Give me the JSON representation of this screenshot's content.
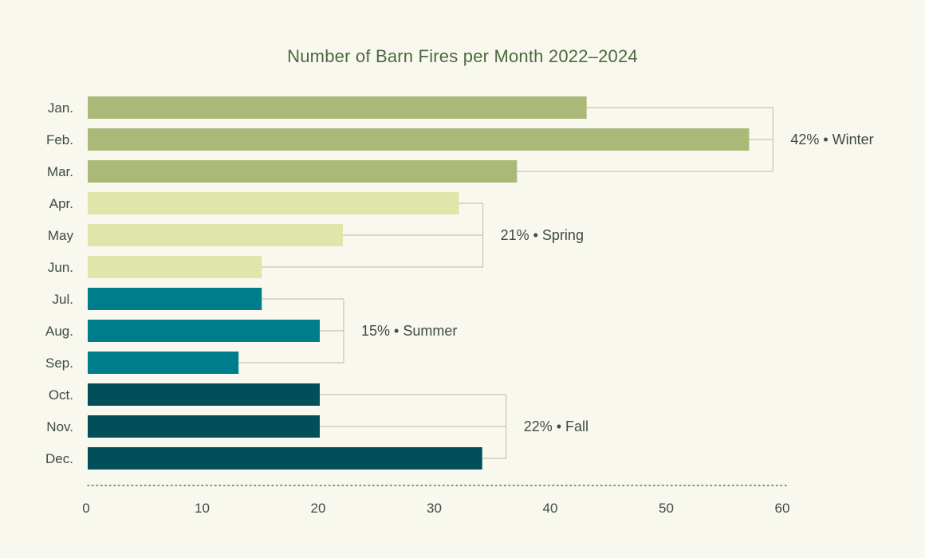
{
  "chart_data": {
    "type": "bar",
    "orientation": "horizontal",
    "title": "Number of Barn Fires per Month 2022–2024",
    "xlabel": "",
    "ylabel": "",
    "xlim": [
      0,
      60
    ],
    "x_ticks": [
      0,
      10,
      20,
      30,
      40,
      50,
      60
    ],
    "grid": false,
    "categories": [
      "Jan.",
      "Feb.",
      "Mar.",
      "Apr.",
      "May",
      "Jun.",
      "Jul.",
      "Aug.",
      "Sep.",
      "Oct.",
      "Nov.",
      "Dec."
    ],
    "values": [
      43,
      57,
      37,
      32,
      22,
      15,
      15,
      20,
      13,
      20,
      20,
      34
    ],
    "groups": [
      {
        "label": "42% • Winter",
        "start": 0,
        "end": 2,
        "color": "#aab878"
      },
      {
        "label": "21% • Spring",
        "start": 3,
        "end": 5,
        "color": "#dfe6aa"
      },
      {
        "label": "15% • Summer",
        "start": 6,
        "end": 8,
        "color": "#007d8a"
      },
      {
        "label": "22% • Fall",
        "start": 9,
        "end": 11,
        "color": "#004f59"
      }
    ]
  },
  "colors": {
    "background": "#f9f8ef",
    "title": "#4a6a3a",
    "text": "#3e4a45",
    "bracket": "#b9b9ae",
    "axis_dots": "#5a6a60"
  }
}
